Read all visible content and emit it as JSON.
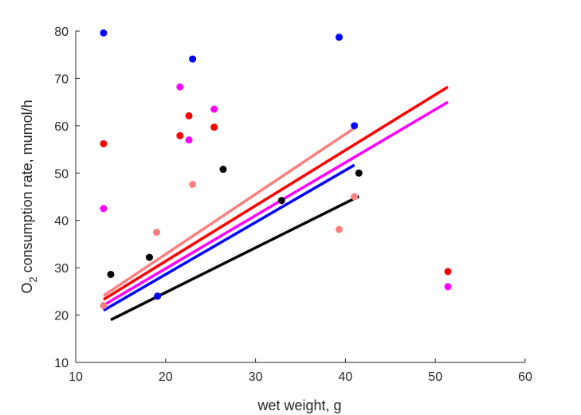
{
  "chart_data": {
    "type": "scatter",
    "title": "",
    "xlabel": "wet weight, g",
    "ylabel_main": "O",
    "ylabel_sub": "2",
    "ylabel_rest": " consumption rate, mumol/h",
    "xlim": [
      10,
      60
    ],
    "ylim": [
      10,
      80
    ],
    "xticks": [
      10,
      20,
      30,
      40,
      50,
      60
    ],
    "yticks": [
      10,
      20,
      30,
      40,
      50,
      60,
      70,
      80
    ],
    "grid": false,
    "legend": "none",
    "series": [
      {
        "color": "#0000ff",
        "points": [
          [
            13.1,
            79.6
          ],
          [
            23.0,
            74.1
          ],
          [
            39.3,
            78.7
          ],
          [
            41.0,
            60.0
          ],
          [
            19.1,
            24.0
          ]
        ],
        "fit": [
          [
            13.1,
            21.0
          ],
          [
            41.0,
            51.7
          ]
        ]
      },
      {
        "color": "#ff0000",
        "points": [
          [
            13.1,
            56.2
          ],
          [
            21.6,
            57.9
          ],
          [
            22.6,
            62.1
          ],
          [
            25.4,
            59.7
          ],
          [
            51.4,
            29.2
          ]
        ],
        "fit": [
          [
            13.1,
            23.3
          ],
          [
            51.4,
            68.2
          ]
        ]
      },
      {
        "color": "#ff00ff",
        "points": [
          [
            13.1,
            42.5
          ],
          [
            21.6,
            68.2
          ],
          [
            22.6,
            57.0
          ],
          [
            25.4,
            63.5
          ],
          [
            51.4,
            26.0
          ]
        ],
        "fit": [
          [
            13.1,
            22.1
          ],
          [
            51.4,
            65.0
          ]
        ]
      },
      {
        "color": "#f88080",
        "points": [
          [
            13.1,
            22.0
          ],
          [
            19.0,
            37.5
          ],
          [
            23.0,
            47.6
          ],
          [
            39.3,
            38.1
          ],
          [
            41.0,
            45.0
          ]
        ],
        "fit": [
          [
            13.1,
            24.1
          ],
          [
            41.0,
            59.5
          ]
        ]
      },
      {
        "color": "#000000",
        "points": [
          [
            13.9,
            28.6
          ],
          [
            18.2,
            32.2
          ],
          [
            26.4,
            50.8
          ],
          [
            32.9,
            44.2
          ],
          [
            41.5,
            50.0
          ]
        ],
        "fit": [
          [
            13.9,
            19.0
          ],
          [
            41.5,
            45.1
          ]
        ]
      }
    ]
  }
}
